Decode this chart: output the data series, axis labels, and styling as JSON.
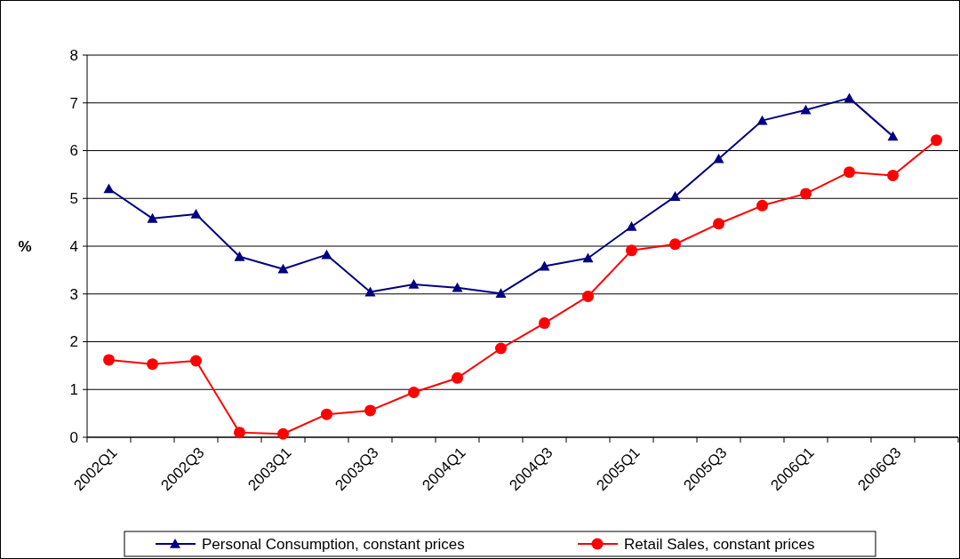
{
  "chart_data": {
    "type": "line",
    "ylabel": "%",
    "categories": [
      "2002Q1",
      null,
      "2002Q3",
      null,
      "2003Q1",
      null,
      "2003Q3",
      null,
      "2004Q1",
      null,
      "2004Q3",
      null,
      "2005Q1",
      null,
      "2005Q3",
      null,
      "2006Q1",
      null,
      "2006Q3",
      null
    ],
    "series": [
      {
        "name": "Personal Consumption, constant prices",
        "color": "#000080",
        "marker": "triangle",
        "values": [
          5.2,
          4.58,
          4.67,
          3.78,
          3.52,
          3.82,
          3.04,
          3.2,
          3.13,
          3.01,
          3.58,
          3.75,
          4.41,
          5.04,
          5.83,
          6.63,
          6.85,
          7.1,
          6.3,
          null
        ]
      },
      {
        "name": "Retail Sales, constant prices",
        "color": "#ff0000",
        "marker": "circle",
        "values": [
          1.62,
          1.53,
          1.6,
          0.1,
          0.07,
          0.48,
          0.56,
          0.94,
          1.24,
          1.86,
          2.39,
          2.95,
          3.91,
          4.04,
          4.47,
          4.85,
          5.1,
          5.55,
          5.48,
          6.22
        ]
      }
    ],
    "ylim": [
      0,
      8
    ],
    "yticks": [
      0,
      1,
      2,
      3,
      4,
      5,
      6,
      7,
      8
    ],
    "grid": "y",
    "legend": "bottom"
  }
}
